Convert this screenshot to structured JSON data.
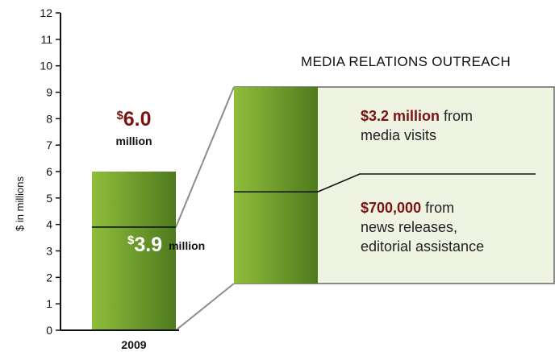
{
  "chart_data": {
    "type": "bar",
    "title": "",
    "xlabel": "",
    "ylabel": "$ in millions",
    "ylim": [
      0,
      12
    ],
    "yticks": [
      "0",
      "1",
      "2",
      "3",
      "4",
      "5",
      "6",
      "7",
      "8",
      "9",
      "10",
      "11",
      "12"
    ],
    "categories": [
      "2009"
    ],
    "bar": {
      "total": 6.0,
      "total_label_value": "6.0",
      "total_label_unit": "million",
      "segment_value": 3.9,
      "segment_label_value": "3.9",
      "segment_label_unit": "million",
      "dollar_sign": "$"
    },
    "breakdown": {
      "title": "MEDIA RELATIONS OUTREACH",
      "items": [
        {
          "value": 3.2,
          "highlight": "$3.2 million",
          "text_lines": [
            "from",
            "media visits"
          ]
        },
        {
          "value": 0.7,
          "highlight": "$700,000",
          "text_lines": [
            "from",
            "news releases,",
            "editorial assistance"
          ]
        }
      ]
    },
    "colors": {
      "bar_light": "#8fbe3a",
      "bar_dark": "#4e7a1e",
      "panel_bg": "#eef3e2",
      "highlight_text": "#7a1414"
    }
  }
}
